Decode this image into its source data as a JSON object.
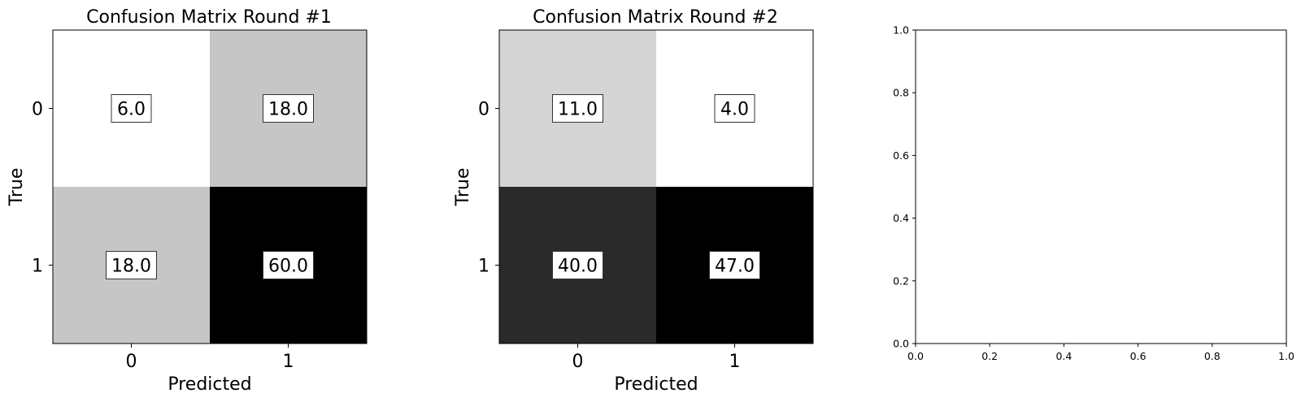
{
  "chart_data": [
    {
      "type": "heatmap",
      "title": "Confusion Matrix Round #1",
      "xlabel": "Predicted",
      "ylabel": "True",
      "x_categories": [
        "0",
        "1"
      ],
      "y_categories": [
        "0",
        "1"
      ],
      "values": [
        [
          6,
          18
        ],
        [
          18,
          60
        ]
      ],
      "cell_labels": [
        [
          "6.0",
          "18.0"
        ],
        [
          "18.0",
          "60.0"
        ]
      ],
      "colormap": "gray_r",
      "grid": false
    },
    {
      "type": "heatmap",
      "title": "Confusion Matrix Round #2",
      "xlabel": "Predicted",
      "ylabel": "True",
      "x_categories": [
        "0",
        "1"
      ],
      "y_categories": [
        "0",
        "1"
      ],
      "values": [
        [
          11,
          4
        ],
        [
          40,
          47
        ]
      ],
      "cell_labels": [
        [
          "11.0",
          "4.0"
        ],
        [
          "40.0",
          "47.0"
        ]
      ],
      "colormap": "gray_r",
      "grid": false
    },
    {
      "type": "scatter",
      "title": "",
      "xlabel": "",
      "ylabel": "",
      "xlim": [
        0,
        1
      ],
      "ylim": [
        0,
        1
      ],
      "xticks": [
        "0.0",
        "0.2",
        "0.4",
        "0.6",
        "0.8",
        "1.0"
      ],
      "yticks": [
        "0.0",
        "0.2",
        "0.4",
        "0.6",
        "0.8",
        "1.0"
      ],
      "series": [],
      "grid": false
    }
  ]
}
